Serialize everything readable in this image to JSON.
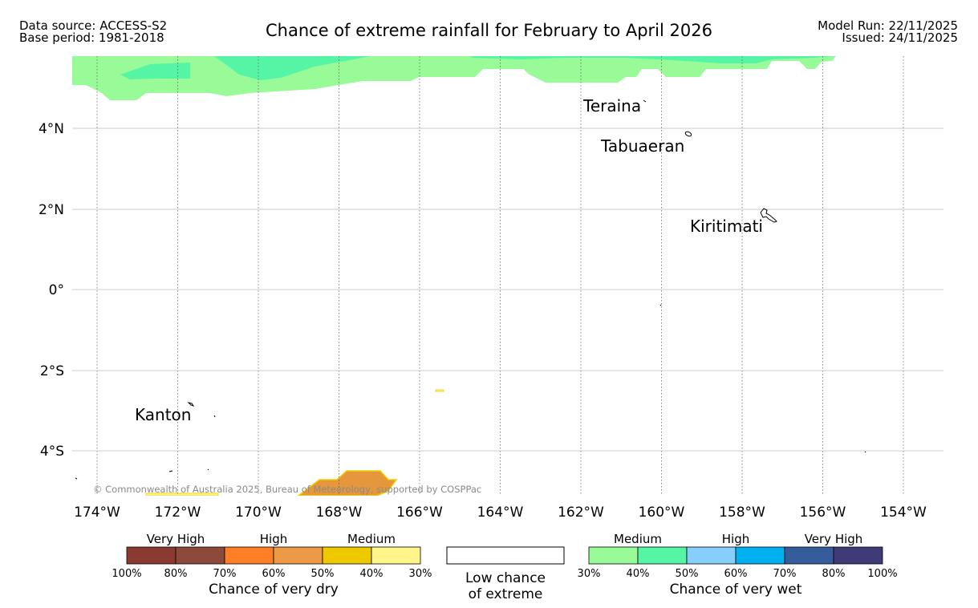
{
  "header": {
    "data_source": "Data source: ACCESS-S2",
    "base_period": "Base period: 1981-2018",
    "title": "Chance of extreme rainfall for February to April 2026",
    "model_run": "Model Run: 22/11/2025",
    "issued": "Issued: 24/11/2025"
  },
  "map": {
    "lon_ticks": [
      "174°W",
      "172°W",
      "170°W",
      "168°W",
      "166°W",
      "164°W",
      "162°W",
      "160°W",
      "158°W",
      "156°W",
      "154°W"
    ],
    "lat_ticks": [
      "4°N",
      "2°N",
      "0°",
      "2°S",
      "4°S"
    ],
    "places": {
      "teraina": "Teraina",
      "tabuaeran": "Tabuaeran",
      "kiritimati": "Kiritimati",
      "kanton": "Kanton"
    },
    "copyright": "© Commonwealth of Australia 2025, Bureau of Meteorology, supported by COSPPac"
  },
  "legend": {
    "dry": {
      "groups": [
        "Very High",
        "High",
        "Medium"
      ],
      "ticks": [
        "100%",
        "80%",
        "70%",
        "60%",
        "50%",
        "40%",
        "30%"
      ],
      "colors": [
        "#8b3a32",
        "#8c4a3a",
        "#ff7f27",
        "#ec9a48",
        "#eec900",
        "#fff58a"
      ],
      "caption": "Chance of very dry"
    },
    "low": {
      "line1": "Low chance",
      "line2": "of extreme"
    },
    "wet": {
      "groups": [
        "Medium",
        "High",
        "Very High"
      ],
      "ticks": [
        "30%",
        "40%",
        "50%",
        "60%",
        "70%",
        "80%",
        "100%"
      ],
      "colors": [
        "#98fb98",
        "#55f5a5",
        "#87cefa",
        "#00b0ef",
        "#365d9b",
        "#3e3b76"
      ],
      "caption": "Chance of very wet"
    }
  }
}
